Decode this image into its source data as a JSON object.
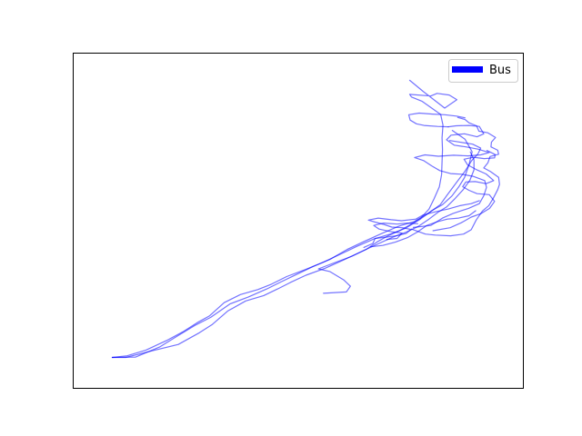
{
  "chart_data": {
    "type": "line",
    "title": "",
    "xlabel": "",
    "ylabel": "",
    "xlim": [
      0,
      1
    ],
    "ylim": [
      0,
      1
    ],
    "grid": false,
    "ticks_visible": false,
    "legend": {
      "placement": "top-right",
      "entries": [
        {
          "label": "Bus",
          "color": "#0000ff"
        }
      ]
    },
    "series": [
      {
        "name": "Bus",
        "color": "#0000ff",
        "alpha": 0.55,
        "segments": [
          [
            [
              0.086,
              0.091
            ],
            [
              0.116,
              0.091
            ],
            [
              0.175,
              0.111
            ],
            [
              0.233,
              0.13
            ],
            [
              0.28,
              0.165
            ],
            [
              0.309,
              0.19
            ],
            [
              0.343,
              0.23
            ],
            [
              0.383,
              0.26
            ],
            [
              0.423,
              0.276
            ],
            [
              0.454,
              0.296
            ],
            [
              0.482,
              0.315
            ],
            [
              0.517,
              0.337
            ],
            [
              0.56,
              0.358
            ],
            [
              0.603,
              0.384
            ],
            [
              0.636,
              0.405
            ],
            [
              0.673,
              0.428
            ],
            [
              0.709,
              0.45
            ],
            [
              0.74,
              0.466
            ],
            [
              0.766,
              0.482
            ],
            [
              0.791,
              0.505
            ],
            [
              0.812,
              0.526
            ],
            [
              0.83,
              0.541
            ],
            [
              0.848,
              0.565
            ],
            [
              0.867,
              0.593
            ],
            [
              0.882,
              0.621
            ],
            [
              0.891,
              0.652
            ],
            [
              0.891,
              0.682
            ],
            [
              0.883,
              0.706
            ]
          ],
          [
            [
              0.086,
              0.091
            ],
            [
              0.119,
              0.096
            ],
            [
              0.161,
              0.113
            ],
            [
              0.206,
              0.141
            ],
            [
              0.245,
              0.169
            ],
            [
              0.275,
              0.195
            ],
            [
              0.302,
              0.215
            ],
            [
              0.335,
              0.255
            ],
            [
              0.371,
              0.279
            ],
            [
              0.41,
              0.294
            ],
            [
              0.44,
              0.31
            ],
            [
              0.474,
              0.333
            ],
            [
              0.516,
              0.354
            ],
            [
              0.554,
              0.375
            ],
            [
              0.591,
              0.398
            ],
            [
              0.63,
              0.423
            ],
            [
              0.669,
              0.446
            ],
            [
              0.705,
              0.46
            ],
            [
              0.738,
              0.477
            ],
            [
              0.772,
              0.505
            ],
            [
              0.797,
              0.53
            ],
            [
              0.821,
              0.548
            ],
            [
              0.842,
              0.574
            ],
            [
              0.858,
              0.603
            ],
            [
              0.87,
              0.629
            ],
            [
              0.88,
              0.667
            ],
            [
              0.887,
              0.706
            ],
            [
              0.871,
              0.744
            ],
            [
              0.843,
              0.77
            ]
          ],
          [
            [
              0.086,
              0.091
            ],
            [
              0.138,
              0.092
            ],
            [
              0.191,
              0.122
            ],
            [
              0.232,
              0.156
            ],
            [
              0.27,
              0.187
            ],
            [
              0.305,
              0.211
            ],
            [
              0.348,
              0.251
            ],
            [
              0.389,
              0.272
            ],
            [
              0.43,
              0.296
            ],
            [
              0.463,
              0.318
            ],
            [
              0.497,
              0.34
            ],
            [
              0.533,
              0.363
            ],
            [
              0.57,
              0.384
            ],
            [
              0.609,
              0.414
            ],
            [
              0.645,
              0.437
            ],
            [
              0.688,
              0.463
            ],
            [
              0.724,
              0.484
            ],
            [
              0.757,
              0.497
            ],
            [
              0.786,
              0.519
            ],
            [
              0.816,
              0.548
            ],
            [
              0.831,
              0.576
            ],
            [
              0.852,
              0.614
            ],
            [
              0.87,
              0.646
            ],
            [
              0.886,
              0.68
            ],
            [
              0.9,
              0.7
            ],
            [
              0.906,
              0.717
            ],
            [
              0.888,
              0.729
            ],
            [
              0.856,
              0.736
            ],
            [
              0.837,
              0.74
            ]
          ],
          [
            [
              0.556,
              0.283
            ],
            [
              0.607,
              0.287
            ],
            [
              0.616,
              0.304
            ],
            [
              0.601,
              0.323
            ],
            [
              0.57,
              0.348
            ],
            [
              0.545,
              0.356
            ],
            [
              0.582,
              0.375
            ],
            [
              0.62,
              0.394
            ],
            [
              0.651,
              0.414
            ],
            [
              0.676,
              0.437
            ],
            [
              0.7,
              0.455
            ],
            [
              0.725,
              0.47
            ],
            [
              0.748,
              0.487
            ],
            [
              0.772,
              0.507
            ],
            [
              0.791,
              0.535
            ],
            [
              0.802,
              0.565
            ],
            [
              0.814,
              0.601
            ],
            [
              0.819,
              0.638
            ],
            [
              0.82,
              0.676
            ],
            [
              0.821,
              0.712
            ],
            [
              0.82,
              0.748
            ],
            [
              0.822,
              0.786
            ],
            [
              0.817,
              0.818
            ],
            [
              0.776,
              0.857
            ],
            [
              0.752,
              0.87
            ],
            [
              0.748,
              0.878
            ],
            [
              0.795,
              0.873
            ],
            [
              0.809,
              0.881
            ],
            [
              0.836,
              0.876
            ],
            [
              0.853,
              0.862
            ],
            [
              0.826,
              0.837
            ],
            [
              0.778,
              0.887
            ],
            [
              0.748,
              0.92
            ]
          ],
          [
            [
              0.752,
              0.475
            ],
            [
              0.783,
              0.46
            ],
            [
              0.805,
              0.457
            ],
            [
              0.839,
              0.455
            ],
            [
              0.868,
              0.46
            ],
            [
              0.885,
              0.473
            ],
            [
              0.896,
              0.502
            ],
            [
              0.91,
              0.529
            ],
            [
              0.924,
              0.545
            ],
            [
              0.934,
              0.567
            ],
            [
              0.944,
              0.593
            ],
            [
              0.948,
              0.609
            ],
            [
              0.946,
              0.63
            ],
            [
              0.928,
              0.647
            ],
            [
              0.913,
              0.658
            ],
            [
              0.922,
              0.673
            ],
            [
              0.927,
              0.692
            ],
            [
              0.946,
              0.699
            ],
            [
              0.944,
              0.711
            ],
            [
              0.929,
              0.721
            ],
            [
              0.93,
              0.735
            ],
            [
              0.939,
              0.749
            ],
            [
              0.922,
              0.763
            ],
            [
              0.902,
              0.768
            ],
            [
              0.897,
              0.784
            ],
            [
              0.88,
              0.793
            ],
            [
              0.871,
              0.803
            ],
            [
              0.855,
              0.809
            ]
          ],
          [
            [
              0.756,
              0.48
            ],
            [
              0.795,
              0.486
            ],
            [
              0.821,
              0.508
            ],
            [
              0.845,
              0.522
            ],
            [
              0.879,
              0.537
            ],
            [
              0.903,
              0.551
            ],
            [
              0.913,
              0.575
            ],
            [
              0.919,
              0.6
            ],
            [
              0.915,
              0.62
            ],
            [
              0.889,
              0.633
            ],
            [
              0.864,
              0.639
            ],
            [
              0.839,
              0.641
            ],
            [
              0.815,
              0.65
            ],
            [
              0.797,
              0.664
            ],
            [
              0.779,
              0.68
            ],
            [
              0.759,
              0.689
            ],
            [
              0.782,
              0.697
            ],
            [
              0.812,
              0.693
            ],
            [
              0.846,
              0.696
            ],
            [
              0.878,
              0.694
            ],
            [
              0.906,
              0.697
            ],
            [
              0.925,
              0.704
            ],
            [
              0.9,
              0.714
            ],
            [
              0.873,
              0.721
            ],
            [
              0.847,
              0.726
            ],
            [
              0.83,
              0.742
            ],
            [
              0.84,
              0.756
            ],
            [
              0.87,
              0.76
            ],
            [
              0.898,
              0.751
            ],
            [
              0.913,
              0.76
            ],
            [
              0.903,
              0.782
            ],
            [
              0.88,
              0.785
            ],
            [
              0.851,
              0.784
            ],
            [
              0.834,
              0.781
            ]
          ],
          [
            [
              0.8,
              0.47
            ],
            [
              0.838,
              0.479
            ],
            [
              0.863,
              0.494
            ],
            [
              0.885,
              0.511
            ],
            [
              0.906,
              0.521
            ],
            [
              0.926,
              0.537
            ],
            [
              0.937,
              0.558
            ],
            [
              0.925,
              0.578
            ],
            [
              0.898,
              0.581
            ],
            [
              0.88,
              0.591
            ],
            [
              0.866,
              0.602
            ],
            [
              0.873,
              0.616
            ],
            [
              0.894,
              0.617
            ],
            [
              0.918,
              0.611
            ],
            [
              0.935,
              0.62
            ],
            [
              0.918,
              0.64
            ],
            [
              0.898,
              0.652
            ],
            [
              0.877,
              0.667
            ],
            [
              0.869,
              0.684
            ],
            [
              0.89,
              0.69
            ],
            [
              0.914,
              0.686
            ],
            [
              0.937,
              0.688
            ],
            [
              0.938,
              0.698
            ],
            [
              0.92,
              0.71
            ]
          ],
          [
            [
              0.646,
              0.42
            ],
            [
              0.666,
              0.432
            ],
            [
              0.671,
              0.447
            ],
            [
              0.697,
              0.451
            ],
            [
              0.718,
              0.455
            ],
            [
              0.74,
              0.462
            ],
            [
              0.751,
              0.474
            ],
            [
              0.732,
              0.479
            ],
            [
              0.708,
              0.481
            ],
            [
              0.69,
              0.489
            ],
            [
              0.671,
              0.496
            ],
            [
              0.656,
              0.502
            ],
            [
              0.678,
              0.508
            ],
            [
              0.707,
              0.503
            ],
            [
              0.73,
              0.5
            ],
            [
              0.762,
              0.505
            ],
            [
              0.778,
              0.517
            ],
            [
              0.806,
              0.527
            ],
            [
              0.834,
              0.535
            ],
            [
              0.86,
              0.545
            ],
            [
              0.885,
              0.551
            ],
            [
              0.903,
              0.56
            ]
          ],
          [
            [
              0.661,
              0.422
            ],
            [
              0.688,
              0.426
            ],
            [
              0.716,
              0.436
            ],
            [
              0.744,
              0.45
            ],
            [
              0.765,
              0.466
            ],
            [
              0.786,
              0.486
            ],
            [
              0.81,
              0.497
            ],
            [
              0.832,
              0.505
            ],
            [
              0.857,
              0.508
            ],
            [
              0.88,
              0.515
            ],
            [
              0.895,
              0.53
            ]
          ],
          [
            [
              0.697,
              0.444
            ],
            [
              0.72,
              0.447
            ],
            [
              0.731,
              0.463
            ],
            [
              0.704,
              0.468
            ],
            [
              0.68,
              0.475
            ],
            [
              0.668,
              0.486
            ],
            [
              0.69,
              0.493
            ],
            [
              0.72,
              0.49
            ],
            [
              0.743,
              0.493
            ],
            [
              0.766,
              0.491
            ]
          ],
          [
            [
              0.834,
              0.781
            ],
            [
              0.81,
              0.782
            ],
            [
              0.78,
              0.785
            ],
            [
              0.763,
              0.79
            ],
            [
              0.749,
              0.801
            ],
            [
              0.746,
              0.817
            ],
            [
              0.769,
              0.822
            ],
            [
              0.799,
              0.819
            ],
            [
              0.826,
              0.817
            ],
            [
              0.852,
              0.813
            ],
            [
              0.871,
              0.808
            ]
          ]
        ]
      }
    ]
  }
}
